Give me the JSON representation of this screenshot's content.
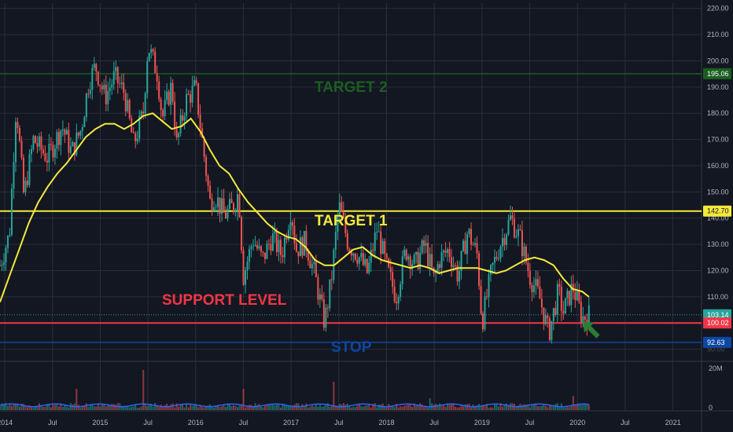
{
  "colors": {
    "background": "#131722",
    "grid": "#2a2e39",
    "up": "#26a69a",
    "down": "#ef5350",
    "ma": "#f5e93a",
    "target2": "#1b5e20",
    "target1": "#f5e93a",
    "support": "#f23645",
    "stop": "#0d47a1",
    "last": "#26a69a",
    "arrow": "#2e7d32",
    "volume": "#2962ff"
  },
  "chart_data": {
    "type": "candlestick",
    "price_axis": {
      "ylim": [
        86,
        222
      ],
      "ticks": [
        "90.00",
        "100.00",
        "110.00",
        "120.00",
        "130.00",
        "140.00",
        "150.00",
        "160.00",
        "170.00",
        "180.00",
        "190.00",
        "200.00",
        "210.00",
        "220.00"
      ],
      "tick_values": [
        90,
        100,
        110,
        120,
        130,
        140,
        150,
        160,
        170,
        180,
        190,
        200,
        210,
        220
      ]
    },
    "volume_axis": {
      "labels": [
        "20M",
        "0"
      ]
    },
    "time_axis": {
      "labels": [
        "2014",
        "Jul",
        "2015",
        "Jul",
        "2016",
        "Jul",
        "2017",
        "Jul",
        "2018",
        "Jul",
        "2019",
        "Jul",
        "2020",
        "Jul",
        "2021"
      ],
      "positions": [
        2014.0,
        2014.5,
        2015.0,
        2015.5,
        2016.0,
        2016.5,
        2017.0,
        2017.5,
        2018.0,
        2018.5,
        2019.0,
        2019.5,
        2020.0,
        2020.5,
        2021.0
      ],
      "xlim": [
        2013.95,
        2021.3
      ]
    },
    "price_series": {
      "x": [
        2013.95,
        2014.05,
        2014.12,
        2014.2,
        2014.3,
        2014.45,
        2014.6,
        2014.7,
        2014.8,
        2014.88,
        2014.95,
        2015.05,
        2015.15,
        2015.25,
        2015.35,
        2015.45,
        2015.5,
        2015.6,
        2015.65,
        2015.75,
        2015.8,
        2015.9,
        2016.0,
        2016.05,
        2016.15,
        2016.2,
        2016.3,
        2016.4,
        2016.45,
        2016.5,
        2016.6,
        2016.7,
        2016.8,
        2016.9,
        2017.0,
        2017.05,
        2017.15,
        2017.25,
        2017.35,
        2017.42,
        2017.5,
        2017.6,
        2017.7,
        2017.8,
        2017.9,
        2018.0,
        2018.1,
        2018.2,
        2018.3,
        2018.4,
        2018.5,
        2018.55,
        2018.65,
        2018.75,
        2018.85,
        2018.95,
        2019.0,
        2019.1,
        2019.2,
        2019.3,
        2019.4,
        2019.5,
        2019.6,
        2019.7,
        2019.8,
        2019.85,
        2019.95,
        2020.05,
        2020.12
      ],
      "y": [
        122,
        134,
        184,
        148,
        170,
        163,
        175,
        165,
        174,
        192,
        198,
        186,
        194,
        188,
        168,
        180,
        206,
        195,
        178,
        191,
        168,
        185,
        190,
        175,
        146,
        149,
        141,
        145,
        150,
        118,
        132,
        124,
        133,
        126,
        144,
        128,
        131,
        118,
        100,
        116,
        145,
        130,
        126,
        119,
        136,
        121,
        110,
        128,
        122,
        130,
        116,
        124,
        128,
        118,
        135,
        126,
        100,
        120,
        131,
        140,
        132,
        118,
        110,
        96,
        112,
        104,
        114,
        102,
        103.14
      ]
    },
    "moving_average": {
      "x": [
        2013.95,
        2014.05,
        2014.15,
        2014.25,
        2014.35,
        2014.45,
        2014.55,
        2014.65,
        2014.75,
        2014.85,
        2014.95,
        2015.05,
        2015.15,
        2015.25,
        2015.35,
        2015.45,
        2015.55,
        2015.65,
        2015.75,
        2015.85,
        2015.95,
        2016.05,
        2016.15,
        2016.25,
        2016.35,
        2016.45,
        2016.55,
        2016.65,
        2016.75,
        2016.85,
        2016.95,
        2017.05,
        2017.15,
        2017.25,
        2017.35,
        2017.45,
        2017.55,
        2017.65,
        2017.75,
        2017.85,
        2017.95,
        2018.05,
        2018.15,
        2018.25,
        2018.35,
        2018.45,
        2018.55,
        2018.65,
        2018.75,
        2018.85,
        2018.95,
        2019.05,
        2019.15,
        2019.25,
        2019.35,
        2019.45,
        2019.55,
        2019.65,
        2019.75,
        2019.85,
        2019.95,
        2020.05,
        2020.12
      ],
      "y": [
        108,
        118,
        128,
        138,
        146,
        152,
        157,
        161,
        166,
        171,
        174,
        176,
        176,
        174,
        176,
        179,
        180,
        177,
        174,
        175,
        178,
        173,
        166,
        160,
        157,
        151,
        146,
        142,
        138,
        135,
        133,
        132,
        129,
        124,
        122,
        122,
        125,
        128,
        129,
        126,
        124,
        123,
        122,
        121,
        122,
        121,
        119,
        120,
        121,
        121,
        121,
        120,
        119,
        120,
        122,
        124,
        125,
        124,
        122,
        117,
        113,
        112,
        110
      ]
    },
    "volume": {
      "baseline_value": 2,
      "spike_x": [
        2014.75,
        2015.45,
        2016.5,
        2017.45,
        2018.45,
        2019.95
      ],
      "spike_y": [
        9,
        17,
        9,
        12,
        5,
        6
      ]
    },
    "levels": [
      {
        "name": "target2",
        "label": "TARGET 2",
        "value": 195.06,
        "value_text": "195.06"
      },
      {
        "name": "target1",
        "label": "TARGET 1",
        "value": 142.7,
        "value_text": "142.70"
      },
      {
        "name": "support",
        "label": "SUPPORT LEVEL",
        "value": 100.02,
        "value_text": "100.02"
      },
      {
        "name": "stop",
        "label": "STOP",
        "value": 92.63,
        "value_text": "92.63"
      }
    ],
    "last_price": {
      "value": 103.14,
      "text": "103.14"
    }
  }
}
